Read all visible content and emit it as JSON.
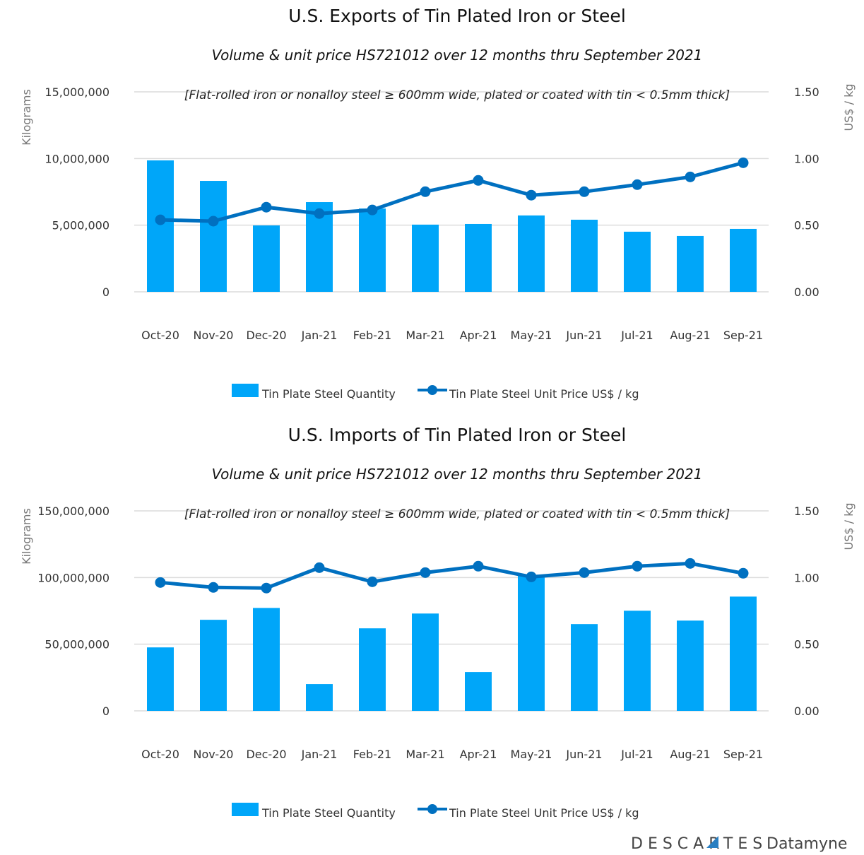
{
  "colors": {
    "bars": "#00a6f9",
    "line": "#0070c0",
    "grid": "#dcdcdc"
  },
  "chart_data": [
    {
      "type": "bar+line",
      "title": "U.S. Exports of Tin Plated Iron or Steel",
      "subtitle": "Volume & unit price HS721012 over 12 months thru September 2021",
      "annotation": "[Flat-rolled iron or nonalloy steel ≥ 600mm wide, plated or coated with tin < 0.5mm thick]",
      "ylabel": "Kilograms",
      "y2label": "US$ / kg",
      "ylim": [
        0,
        15000000
      ],
      "y2lim": [
        0,
        1.5
      ],
      "yticks": [
        "0",
        "5,000,000",
        "10,000,000",
        "15,000,000"
      ],
      "y2ticks": [
        "0.00",
        "0.50",
        "1.00",
        "1.50"
      ],
      "grid": true,
      "legend_position": "bottom",
      "categories": [
        "Oct-20",
        "Nov-20",
        "Dec-20",
        "Jan-21",
        "Feb-21",
        "Mar-21",
        "Apr-21",
        "May-21",
        "Jun-21",
        "Jul-21",
        "Aug-21",
        "Sep-21"
      ],
      "series": [
        {
          "name": "Tin Plate Steel Quantity",
          "type": "bar",
          "axis": "left",
          "values": [
            9860000,
            8320000,
            4980000,
            6730000,
            6250000,
            5040000,
            5090000,
            5730000,
            5410000,
            4510000,
            4190000,
            4720000
          ]
        },
        {
          "name": "Tin Plate Steel Unit Price US$ / kg",
          "type": "line",
          "axis": "right",
          "values": [
            0.54,
            0.53,
            0.635,
            0.587,
            0.614,
            0.751,
            0.836,
            0.725,
            0.751,
            0.804,
            0.862,
            0.968
          ]
        }
      ]
    },
    {
      "type": "bar+line",
      "title": "U.S. Imports of Tin Plated Iron or Steel",
      "subtitle": "Volume & unit price HS721012 over 12 months thru September 2021",
      "annotation": "[Flat-rolled iron or nonalloy steel ≥ 600mm wide, plated or coated with tin < 0.5mm thick]",
      "ylabel": "Kilograms",
      "y2label": "US$ / kg",
      "ylim": [
        0,
        150000000
      ],
      "y2lim": [
        0,
        1.5
      ],
      "yticks": [
        "0",
        "50,000,000",
        "100,000,000",
        "150,000,000"
      ],
      "y2ticks": [
        "0.00",
        "0.50",
        "1.00",
        "1.50"
      ],
      "grid": true,
      "legend_position": "bottom",
      "categories": [
        "Oct-20",
        "Nov-20",
        "Dec-20",
        "Jan-21",
        "Feb-21",
        "Mar-21",
        "Apr-21",
        "May-21",
        "Jun-21",
        "Jul-21",
        "Aug-21",
        "Sep-21"
      ],
      "series": [
        {
          "name": "Tin Plate Steel Quantity",
          "type": "bar",
          "axis": "left",
          "values": [
            47600000,
            68300000,
            77200000,
            20100000,
            61900000,
            73000000,
            29100000,
            102000000,
            65100000,
            75100000,
            67700000,
            85700000
          ]
        },
        {
          "name": "Tin Plate Steel Unit Price US$ / kg",
          "type": "line",
          "axis": "right",
          "values": [
            0.963,
            0.926,
            0.921,
            1.074,
            0.968,
            1.037,
            1.085,
            1.005,
            1.037,
            1.085,
            1.106,
            1.032
          ]
        }
      ]
    }
  ],
  "logo": {
    "brand": "DESCARTES",
    "product": "Datamyne"
  }
}
